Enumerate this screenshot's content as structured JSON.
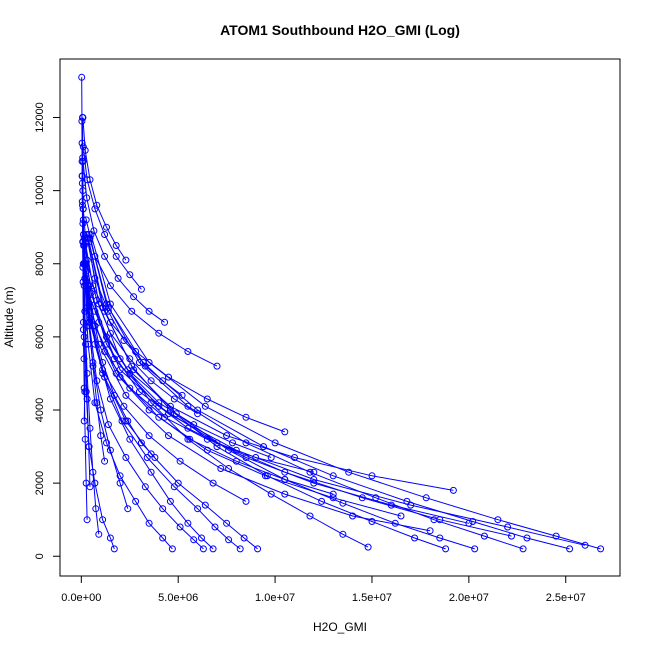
{
  "chart_data": {
    "type": "line",
    "title": "ATOM1 Southbound H2O_GMI (Log)",
    "xlabel": "H2O_GMI",
    "ylabel": "Altitude (m)",
    "xlim": [
      -1100000,
      27800000
    ],
    "ylim": [
      -540,
      13600
    ],
    "x_ticks": [
      0,
      5000000,
      10000000,
      15000000,
      20000000,
      25000000
    ],
    "x_tick_labels": [
      "0.0e+00",
      "5.0e+06",
      "1.0e+07",
      "1.5e+07",
      "2.0e+07",
      "2.5e+07"
    ],
    "y_ticks": [
      0,
      2000,
      4000,
      6000,
      8000,
      10000,
      12000
    ],
    "y_tick_labels": [
      "0",
      "2000",
      "4000",
      "6000",
      "8000",
      "10000",
      "12000"
    ],
    "marker": "open-circle",
    "grid": false,
    "legend": "none",
    "color": "#0000ff",
    "series": [
      {
        "x": [
          1700000.0,
          1500000.0,
          1100000.0,
          700000,
          400000,
          250000,
          150000,
          100000,
          80000,
          60000
        ],
        "y": [
          200,
          500,
          1000,
          2000,
          3000,
          4500,
          6000,
          8000,
          10000,
          12000
        ]
      },
      {
        "x": [
          4700000.0,
          4200000.0,
          3500000.0,
          2800000.0,
          2000000.0,
          1300000.0,
          700000,
          350000,
          180000,
          90000
        ],
        "y": [
          200,
          500,
          900,
          1500,
          2200,
          3100,
          4200,
          5800,
          7600,
          9500
        ]
      },
      {
        "x": [
          6300000.0,
          5800000.0,
          5100000.0,
          4200000.0,
          3300000.0,
          2300000.0,
          1400000.0,
          800000,
          400000,
          150000
        ],
        "y": [
          200,
          450,
          800,
          1300,
          1900,
          2700,
          3600,
          4800,
          6400,
          8500
        ]
      },
      {
        "x": [
          6800000.0,
          6200000.0,
          5500000.0,
          4600000.0,
          3600000.0,
          2500000.0,
          1500000.0,
          700000,
          250000
        ],
        "y": [
          200,
          500,
          900,
          1500,
          2300,
          3200,
          4300,
          5800,
          7800
        ]
      },
      {
        "x": [
          8200000.0,
          7600000.0,
          6900000.0,
          6000000.0,
          4800000.0,
          3400000.0,
          2100000.0,
          1100000.0,
          400000,
          120000
        ],
        "y": [
          200,
          450,
          800,
          1300,
          1900,
          2700,
          3700,
          5000,
          6700,
          8800
        ]
      },
      {
        "x": [
          9100000.0,
          8400000.0,
          7500000.0,
          6400000.0,
          5000000.0,
          3600000.0,
          2300000.0,
          1200000.0,
          450000,
          150000
        ],
        "y": [
          200,
          500,
          900,
          1400,
          2000,
          2800,
          3700,
          4900,
          6500,
          8500
        ]
      },
      {
        "x": [
          14800000.0,
          13500000.0,
          11800000.0,
          9800000.0,
          7600000.0,
          5500000.0,
          3600000.0,
          2000000.0,
          900000,
          300000
        ],
        "y": [
          250,
          600,
          1100,
          1700,
          2400,
          3200,
          4200,
          5400,
          6900,
          8800
        ]
      },
      {
        "x": [
          18800000.0,
          17200000.0,
          15000000.0,
          12400000.0,
          9600000.0,
          7000000.0,
          4600000.0,
          2600000.0,
          1100000.0,
          350000
        ],
        "y": [
          200,
          500,
          950,
          1500,
          2200,
          3000,
          4000,
          5200,
          6800,
          8700
        ]
      },
      {
        "x": [
          20300000.0,
          18500000.0,
          16200000.0,
          13500000.0,
          10500000.0,
          7600000.0,
          4900000.0,
          2700000.0,
          1200000.0,
          400000
        ],
        "y": [
          200,
          500,
          900,
          1450,
          2100,
          2900,
          3900,
          5100,
          6700,
          8600
        ]
      },
      {
        "x": [
          22800000.0,
          20800000.0,
          18200000.0,
          15200000.0,
          11800000.0,
          8500000.0,
          5500000.0,
          3000000.0,
          1300000.0,
          400000
        ],
        "y": [
          200,
          550,
          1000,
          1600,
          2300,
          3100,
          4100,
          5300,
          6900,
          8800
        ]
      },
      {
        "x": [
          25200000.0,
          23000000.0,
          20200000.0,
          16800000.0,
          13000000.0,
          9400000.0,
          6000000.0,
          3300000.0,
          1400000.0,
          450000
        ],
        "y": [
          200,
          500,
          950,
          1500,
          2200,
          3000,
          4000,
          5200,
          6800,
          8700
        ]
      },
      {
        "x": [
          26800000.0,
          24500000.0,
          21500000.0,
          17800000.0,
          13800000.0,
          10000000.0,
          6400000.0,
          3500000.0,
          1500000.0,
          500000
        ],
        "y": [
          200,
          550,
          1000,
          1600,
          2300,
          3100,
          4100,
          5300,
          6900,
          8800
        ]
      },
      {
        "x": [
          26000000.0,
          22000000.0,
          17000000.0,
          12000000.0,
          8000000.0,
          4500000.0,
          2000000.0,
          700000
        ],
        "y": [
          300,
          800,
          1400,
          2100,
          2900,
          3900,
          5100,
          6700
        ]
      },
      {
        "x": [
          20000000.0,
          16000000.0,
          12000000.0,
          8500000.0,
          5500000.0,
          3000000.0,
          1300000.0,
          400000
        ],
        "y": [
          900,
          1400,
          2000,
          2700,
          3500,
          4500,
          5800,
          7400
        ]
      },
      {
        "x": [
          10500000.0,
          8500000.0,
          6500000.0,
          4500000.0,
          2800000.0,
          1500000.0,
          600000,
          200000
        ],
        "y": [
          3400,
          3800,
          4300,
          4900,
          5600,
          6400,
          7400,
          8600
        ]
      },
      {
        "x": [
          7000000.0,
          5500000.0,
          4000000.0,
          2600000.0,
          1500000.0,
          700000,
          250000
        ],
        "y": [
          5200,
          5600,
          6100,
          6700,
          7400,
          8200,
          9200
        ]
      },
      {
        "x": [
          3100000.0,
          2500000.0,
          1800000.0,
          1200000.0,
          700000,
          300000,
          100000
        ],
        "y": [
          7300,
          7700,
          8200,
          8800,
          9500,
          10300,
          11200
        ]
      },
      {
        "x": [
          2300000.0,
          1800000.0,
          1300000.0,
          800000,
          450000,
          200000,
          80000
        ],
        "y": [
          8100,
          8500,
          9000,
          9600,
          10300,
          11100,
          12000
        ]
      },
      {
        "x": [
          12000000.0,
          9000000.0,
          6500000.0,
          4300000.0,
          2500000.0,
          1200000.0,
          400000
        ],
        "y": [
          2300,
          2700,
          3200,
          3800,
          4600,
          5600,
          6900
        ]
      },
      {
        "x": [
          16500000.0,
          13000000.0,
          9500000.0,
          6500000.0,
          4000000.0,
          2000000.0,
          700000
        ],
        "y": [
          1100,
          1600,
          2200,
          2900,
          3800,
          4900,
          6300
        ]
      },
      {
        "x": [
          22200000.0,
          18500000.0,
          14500000.0,
          10500000.0,
          7000000.0,
          4000000.0,
          1700000.0,
          500000
        ],
        "y": [
          550,
          1000,
          1600,
          2300,
          3100,
          4100,
          5400,
          7000
        ]
      },
      {
        "x": [
          13000000.0,
          10500000.0,
          8000000.0,
          5600000.0,
          3500000.0,
          1800000.0,
          700000,
          200000
        ],
        "y": [
          1700,
          2100,
          2600,
          3200,
          4000,
          5000,
          6300,
          8000
        ]
      },
      {
        "x": [
          6000000.0,
          4800000.0,
          3600000.0,
          2500000.0,
          1500000.0,
          800000,
          300000,
          100000
        ],
        "y": [
          3900,
          4300,
          4800,
          5400,
          6100,
          7000,
          8100,
          9500
        ]
      },
      {
        "x": [
          2400000.0,
          2000000.0,
          1500000.0,
          1000000.0,
          600000,
          300000,
          120000,
          50000
        ],
        "y": [
          1300,
          2000,
          2900,
          4000,
          5300,
          6800,
          8500,
          10400
        ]
      },
      {
        "x": [
          900000,
          750000,
          600000,
          450000,
          300000,
          180000,
          90000,
          40000
        ],
        "y": [
          600,
          1300,
          2300,
          3500,
          5000,
          6700,
          8600,
          10400
        ]
      },
      {
        "x": [
          300000,
          250000,
          200000,
          150000,
          110000,
          80000,
          60000,
          40000,
          20000
        ],
        "y": [
          1000,
          2000,
          3200,
          4600,
          6200,
          7900,
          9600,
          11300,
          13100
        ]
      },
      {
        "x": [
          450000,
          380000,
          300000,
          220000,
          150000,
          100000,
          70000
        ],
        "y": [
          1900,
          3000,
          4300,
          5800,
          7400,
          9200,
          10900
        ]
      },
      {
        "x": [
          3800000.0,
          3100000.0,
          2400000.0,
          1700000.0,
          1100000.0,
          600000,
          250000,
          80000
        ],
        "y": [
          2700,
          3100,
          3700,
          4400,
          5300,
          6300,
          7600,
          9100
        ]
      },
      {
        "x": [
          8500000.0,
          6800000.0,
          5100000.0,
          3500000.0,
          2200000.0,
          1100000.0,
          450000,
          150000
        ],
        "y": [
          1500,
          2000,
          2600,
          3300,
          4100,
          5100,
          6400,
          8000
        ]
      },
      {
        "x": [
          18000000.0,
          14000000.0,
          10500000.0,
          7200000.0,
          4500000.0,
          2300000.0,
          900000,
          250000
        ],
        "y": [
          700,
          1100,
          1700,
          2400,
          3300,
          4400,
          5800,
          7500
        ]
      },
      {
        "x": [
          19200000.0,
          15000000.0,
          11000000.0,
          7500000.0,
          4600000.0,
          2400000.0,
          900000,
          250000
        ],
        "y": [
          1800,
          2200,
          2700,
          3300,
          4100,
          5100,
          6400,
          8000
        ]
      },
      {
        "x": [
          9800000.0,
          7800000.0,
          5800000.0,
          4000000.0,
          2500000.0,
          1300000.0,
          500000,
          150000
        ],
        "y": [
          2700,
          3100,
          3600,
          4200,
          5000,
          6000,
          7200,
          8700
        ]
      },
      {
        "x": [
          4300000.0,
          3500000.0,
          2700000.0,
          1900000.0,
          1200000.0,
          650000,
          280000,
          90000
        ],
        "y": [
          6400,
          6700,
          7100,
          7600,
          8200,
          8900,
          9800,
          10800
        ]
      },
      {
        "x": [
          5200000.0,
          4200000.0,
          3200000.0,
          2200000.0,
          1400000.0,
          700000,
          300000
        ],
        "y": [
          4400,
          4800,
          5300,
          5900,
          6700,
          7600,
          8700
        ]
      },
      {
        "x": [
          1200000.0,
          1000000.0,
          800000,
          600000,
          400000,
          250000,
          120000,
          50000
        ],
        "y": [
          2600,
          3300,
          4200,
          5200,
          6300,
          7500,
          8800,
          10200
        ]
      },
      {
        "x": [
          150000,
          180000,
          140000,
          110000,
          90000,
          70000,
          50000,
          40000,
          30000
        ],
        "y": [
          3700,
          4500,
          5400,
          6400,
          7500,
          8600,
          9700,
          10800,
          11900
        ]
      }
    ]
  }
}
